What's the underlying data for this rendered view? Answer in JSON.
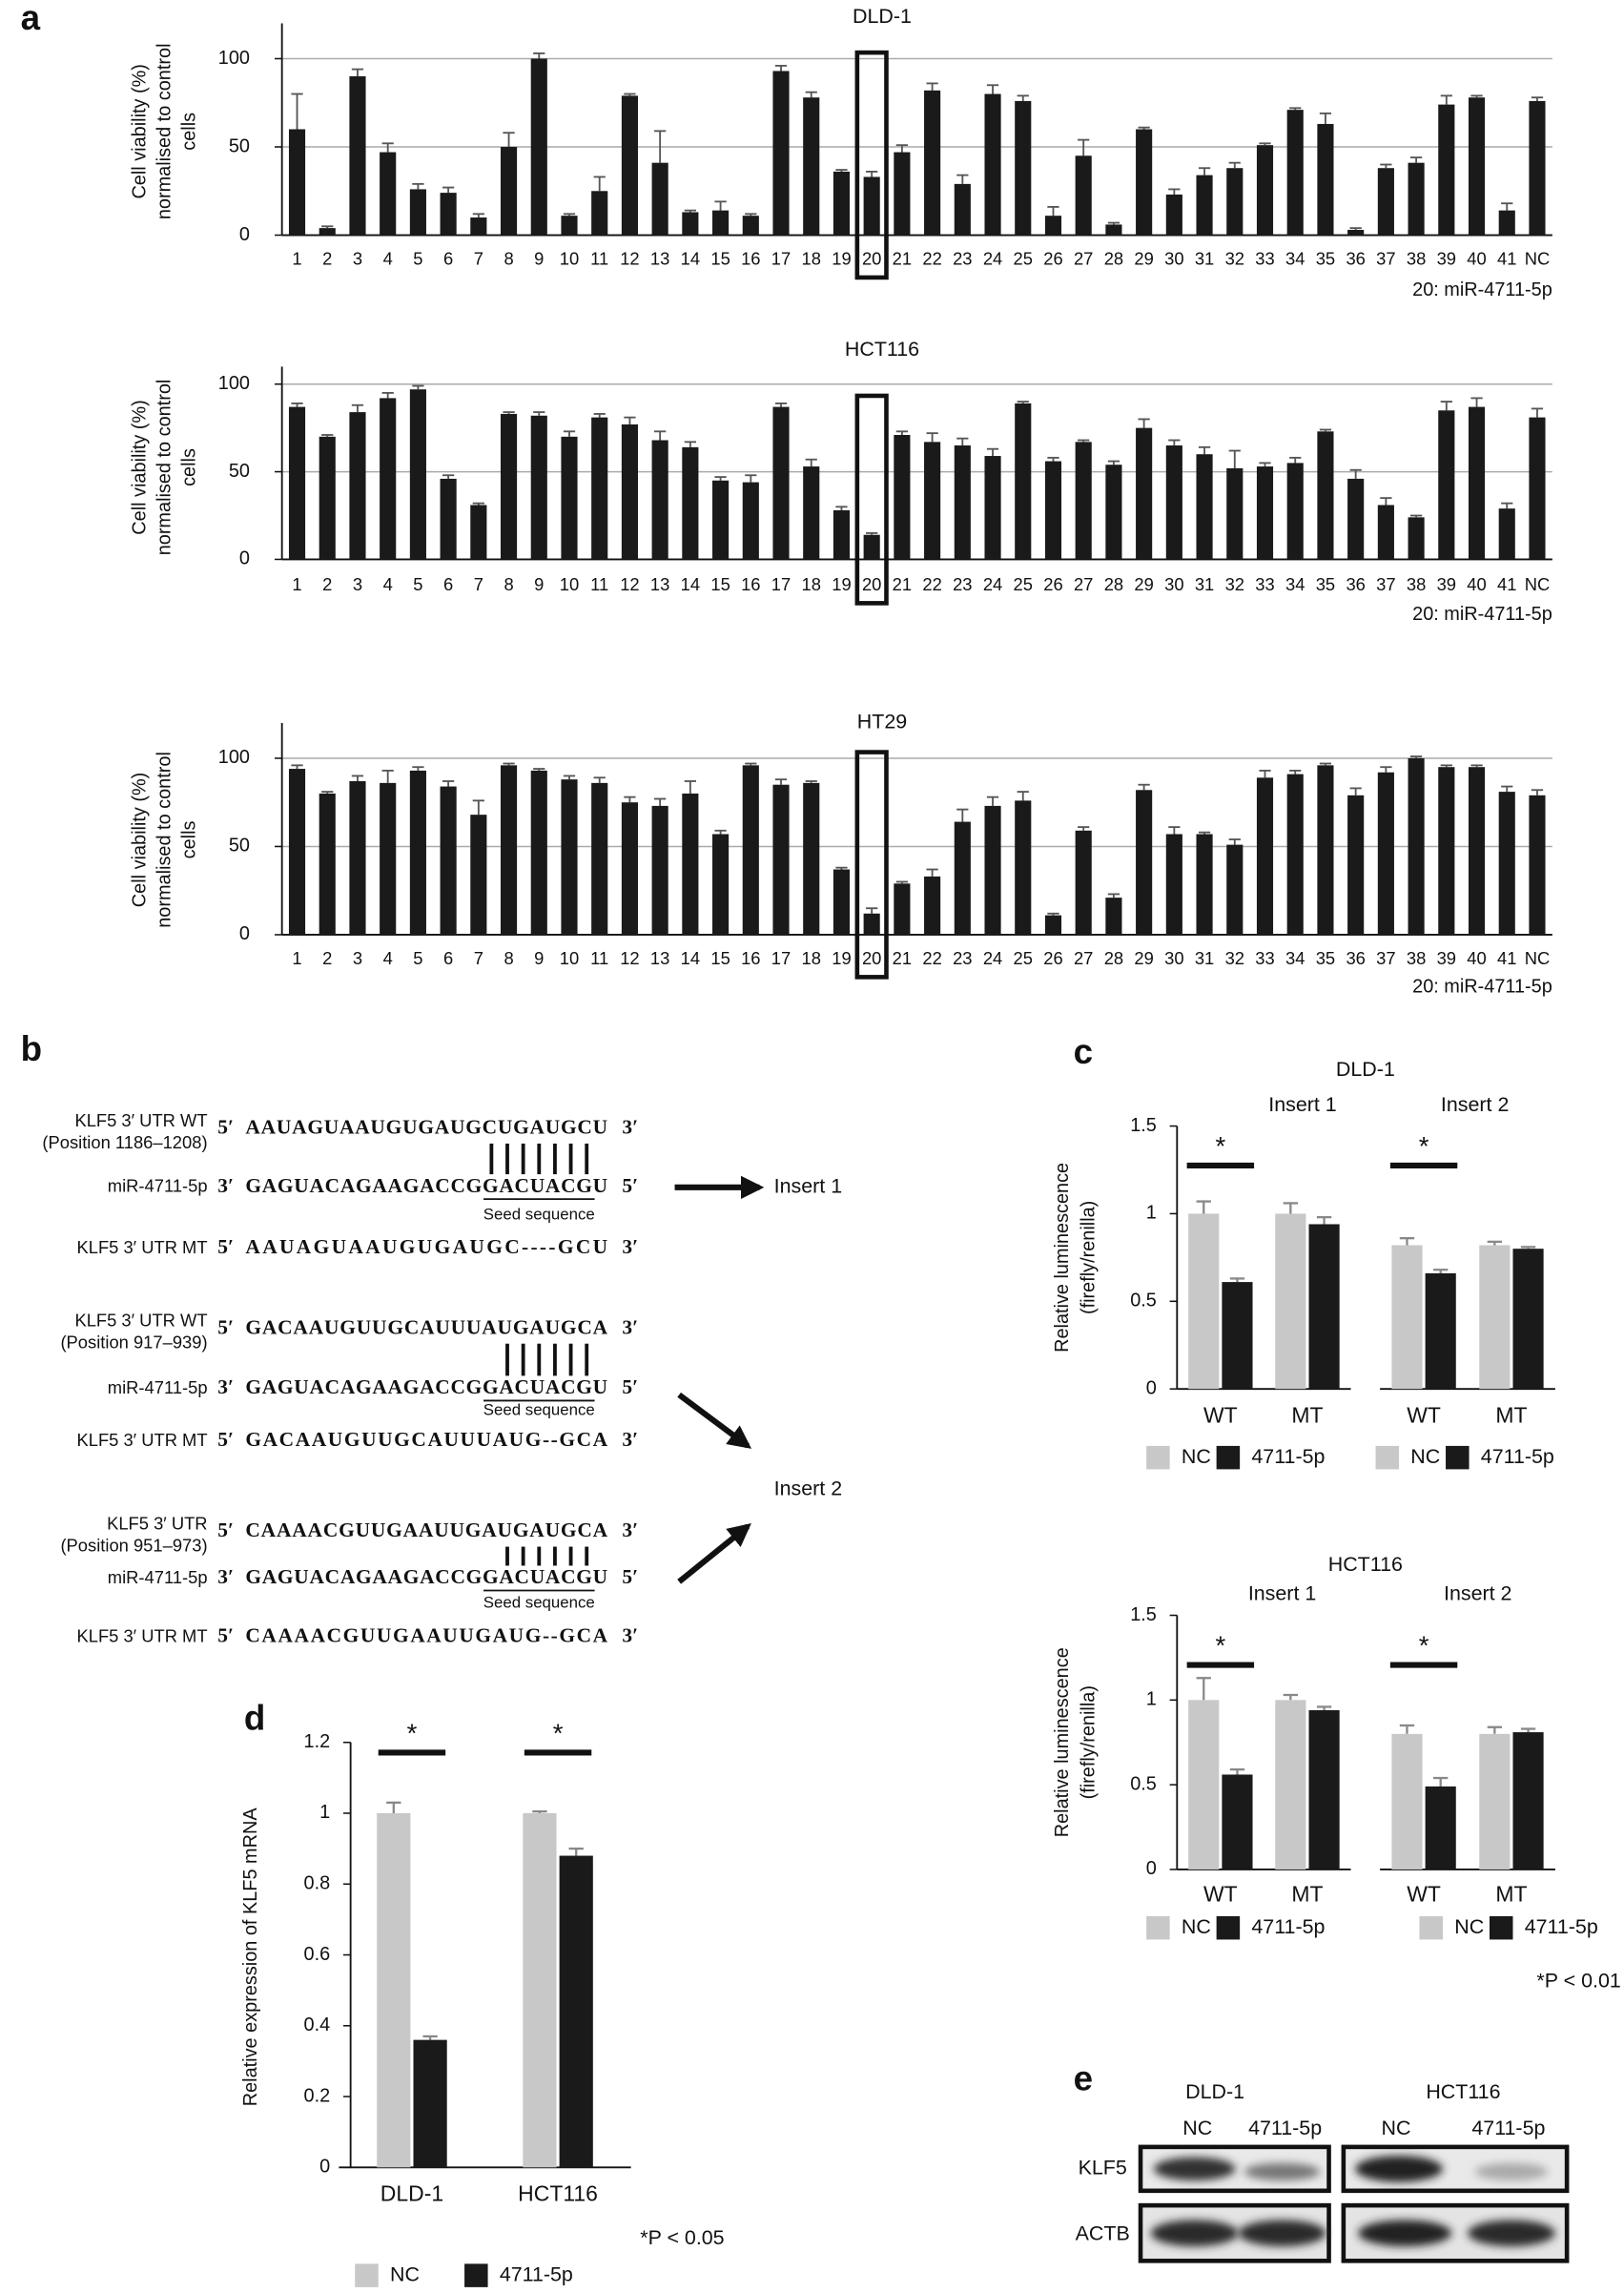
{
  "panel_labels": [
    "a",
    "b",
    "c",
    "d",
    "e"
  ],
  "chart_data": [
    {
      "type": "bar",
      "title": "DLD-1",
      "ylabel": [
        "Cell viability (%)",
        "normalised to control",
        "cells"
      ],
      "categories": [
        "1",
        "2",
        "3",
        "4",
        "5",
        "6",
        "7",
        "8",
        "9",
        "10",
        "11",
        "12",
        "13",
        "14",
        "15",
        "16",
        "17",
        "18",
        "19",
        "20",
        "21",
        "22",
        "23",
        "24",
        "25",
        "26",
        "27",
        "28",
        "29",
        "30",
        "31",
        "32",
        "33",
        "34",
        "35",
        "36",
        "37",
        "38",
        "39",
        "40",
        "41",
        "NC"
      ],
      "values": [
        60,
        4,
        90,
        47,
        26,
        24,
        10,
        50,
        100,
        11,
        25,
        79,
        41,
        13,
        14,
        11,
        93,
        78,
        36,
        33,
        47,
        82,
        29,
        80,
        76,
        11,
        45,
        6,
        60,
        23,
        34,
        38,
        51,
        71,
        63,
        3,
        38,
        41,
        74,
        78,
        14,
        76
      ],
      "errors": [
        20,
        1,
        4,
        5,
        3,
        3,
        2,
        8,
        3,
        1,
        8,
        1,
        18,
        1,
        5,
        1,
        3,
        3,
        1,
        3,
        4,
        4,
        5,
        5,
        3,
        5,
        9,
        1,
        1,
        3,
        4,
        3,
        1,
        1,
        6,
        1,
        2,
        3,
        5,
        1,
        4,
        2
      ],
      "color": "#1a1a1a",
      "ylim": [
        0,
        120
      ],
      "yticks": [
        0,
        50,
        100
      ],
      "grid": true,
      "highlight": "20",
      "annotation": "20: miR-4711-5p"
    },
    {
      "type": "bar",
      "title": "HCT116",
      "ylabel": [
        "Cell viability (%)",
        "normalised to control",
        "cells"
      ],
      "categories": [
        "1",
        "2",
        "3",
        "4",
        "5",
        "6",
        "7",
        "8",
        "9",
        "10",
        "11",
        "12",
        "13",
        "14",
        "15",
        "16",
        "17",
        "18",
        "19",
        "20",
        "21",
        "22",
        "23",
        "24",
        "25",
        "26",
        "27",
        "28",
        "29",
        "30",
        "31",
        "32",
        "33",
        "34",
        "35",
        "36",
        "37",
        "38",
        "39",
        "40",
        "41",
        "NC"
      ],
      "values": [
        87,
        70,
        84,
        92,
        97,
        46,
        31,
        83,
        82,
        70,
        81,
        77,
        68,
        64,
        45,
        44,
        87,
        53,
        28,
        14,
        71,
        67,
        65,
        59,
        89,
        56,
        67,
        54,
        75,
        65,
        60,
        52,
        53,
        55,
        73,
        46,
        31,
        24,
        85,
        87,
        29,
        81
      ],
      "errors": [
        2,
        1,
        4,
        3,
        2,
        2,
        1,
        1,
        2,
        3,
        2,
        4,
        5,
        3,
        2,
        4,
        2,
        4,
        2,
        1,
        2,
        5,
        4,
        4,
        1,
        2,
        1,
        2,
        5,
        3,
        4,
        10,
        2,
        3,
        1,
        5,
        4,
        1,
        5,
        5,
        3,
        5
      ],
      "color": "#1a1a1a",
      "ylim": [
        0,
        110
      ],
      "yticks": [
        0,
        50,
        100
      ],
      "grid": true,
      "highlight": "20",
      "annotation": "20: miR-4711-5p"
    },
    {
      "type": "bar",
      "title": "HT29",
      "ylabel": [
        "Cell viability (%)",
        "normalised to control",
        "cells"
      ],
      "categories": [
        "1",
        "2",
        "3",
        "4",
        "5",
        "6",
        "7",
        "8",
        "9",
        "10",
        "11",
        "12",
        "13",
        "14",
        "15",
        "16",
        "17",
        "18",
        "19",
        "20",
        "21",
        "22",
        "23",
        "24",
        "25",
        "26",
        "27",
        "28",
        "29",
        "30",
        "31",
        "32",
        "33",
        "34",
        "35",
        "36",
        "37",
        "38",
        "39",
        "40",
        "41",
        "NC"
      ],
      "values": [
        94,
        80,
        87,
        86,
        93,
        84,
        68,
        96,
        93,
        88,
        86,
        75,
        73,
        80,
        57,
        96,
        85,
        86,
        37,
        12,
        29,
        33,
        64,
        73,
        76,
        11,
        59,
        21,
        82,
        57,
        57,
        51,
        89,
        91,
        96,
        79,
        92,
        100,
        95,
        95,
        81,
        79
      ],
      "errors": [
        2,
        1,
        3,
        7,
        2,
        3,
        8,
        1,
        1,
        2,
        3,
        3,
        4,
        7,
        2,
        1,
        3,
        1,
        1,
        3,
        1,
        4,
        7,
        5,
        5,
        1,
        2,
        2,
        3,
        4,
        1,
        3,
        4,
        2,
        1,
        4,
        3,
        1,
        1,
        1,
        3,
        3
      ],
      "color": "#1a1a1a",
      "ylim": [
        0,
        120
      ],
      "yticks": [
        0,
        50,
        100
      ],
      "grid": true,
      "highlight": "20",
      "annotation": "20: miR-4711-5p"
    },
    {
      "type": "grouped_bar",
      "title": "DLD-1",
      "ylabel": [
        "Relative luminescence",
        "(firefly/renilla)"
      ],
      "groups": [
        "Insert 1",
        "Insert 2"
      ],
      "categories": [
        "WT",
        "MT",
        "WT",
        "MT"
      ],
      "series": [
        {
          "name": "NC",
          "color": "#c8c8c8",
          "values": [
            1,
            1,
            0.82,
            0.82
          ],
          "errors": [
            0.07,
            0.06,
            0.04,
            0.02
          ]
        },
        {
          "name": "4711-5p",
          "color": "#1a1a1a",
          "values": [
            0.61,
            0.94,
            0.66,
            0.8
          ],
          "errors": [
            0.02,
            0.04,
            0.02,
            0.01
          ]
        }
      ],
      "ylim": [
        0,
        1.5
      ],
      "yticks": [
        0,
        0.5,
        1,
        1.5
      ],
      "significant": [
        true,
        false,
        true,
        false
      ],
      "sig_label": "*"
    },
    {
      "type": "grouped_bar",
      "title": "HCT116",
      "ylabel": [
        "Relative luminescence",
        "(firefly/renilla)"
      ],
      "groups": [
        "Insert 1",
        "Insert 2"
      ],
      "categories": [
        "WT",
        "MT",
        "WT",
        "MT"
      ],
      "series": [
        {
          "name": "NC",
          "color": "#c8c8c8",
          "values": [
            1,
            1,
            0.8,
            0.8
          ],
          "errors": [
            0.13,
            0.03,
            0.05,
            0.04
          ]
        },
        {
          "name": "4711-5p",
          "color": "#1a1a1a",
          "values": [
            0.56,
            0.94,
            0.49,
            0.81
          ],
          "errors": [
            0.03,
            0.02,
            0.05,
            0.02
          ]
        }
      ],
      "ylim": [
        0,
        1.5
      ],
      "yticks": [
        0,
        0.5,
        1,
        1.5
      ],
      "significant": [
        true,
        false,
        true,
        false
      ],
      "sig_label": "*",
      "note": "*P < 0.01"
    },
    {
      "type": "grouped_bar",
      "ylabel": [
        "Relative expression of KLF5 mRNA"
      ],
      "categories": [
        "DLD-1",
        "HCT116"
      ],
      "series": [
        {
          "name": "NC",
          "color": "#c8c8c8",
          "values": [
            1,
            1
          ],
          "errors": [
            0.03,
            0.005
          ]
        },
        {
          "name": "4711-5p",
          "color": "#1a1a1a",
          "values": [
            0.36,
            0.88
          ],
          "errors": [
            0.01,
            0.02
          ]
        }
      ],
      "ylim": [
        0,
        1.2
      ],
      "yticks": [
        0,
        0.2,
        0.4,
        0.6,
        0.8,
        1,
        1.2
      ],
      "significant": [
        true,
        true
      ],
      "sig_label": "*",
      "note": "*P < 0.05"
    }
  ],
  "sequence_panel": {
    "ends": [
      "5′",
      "3′"
    ],
    "inserts": [
      "Insert 1",
      "Insert 2"
    ],
    "blocks": [
      {
        "wt_label": [
          "KLF5 3′ UTR WT",
          "(Position 1186–1208)"
        ],
        "wt_seq": "AAUAGUAAUGUGAUGCUGAUGCU",
        "mir_label": "miR-4711-5p",
        "mir_seq": "GAGUACAGAAGACCGGACUACGU",
        "seed_label": "Seed sequence",
        "mt_label": "KLF5 3′ UTR MT",
        "mt_seq": "AAUAGUAAUGUGAUGC----GCU"
      },
      {
        "wt_label": [
          "KLF5 3′ UTR WT",
          "(Position 917–939)"
        ],
        "wt_seq": "GACAAUGUUGCAUUUAUGAUGCA",
        "mir_label": "miR-4711-5p",
        "mir_seq": "GAGUACAGAAGACCGGACUACGU",
        "seed_label": "Seed sequence",
        "mt_label": "KLF5 3′ UTR MT",
        "mt_seq": "GACAAUGUUGCAUUUAUG--GCA"
      },
      {
        "wt_label": [
          "KLF5 3′ UTR",
          "(Position 951–973)"
        ],
        "wt_seq": "CAAAACGUUGAAUUGAUGAUGCA",
        "mir_label": "miR-4711-5p",
        "mir_seq": "GAGUACAGAAGACCGGACUACGU",
        "seed_label": "Seed sequence",
        "mt_label": "KLF5 3′ UTR MT",
        "mt_seq": "CAAAACGUUGAAUUGAUG--GCA"
      }
    ]
  },
  "blot": {
    "cell_lines": [
      "DLD-1",
      "HCT116"
    ],
    "lanes": [
      "NC",
      "4711-5p"
    ],
    "proteins": [
      "KLF5",
      "ACTB"
    ]
  }
}
